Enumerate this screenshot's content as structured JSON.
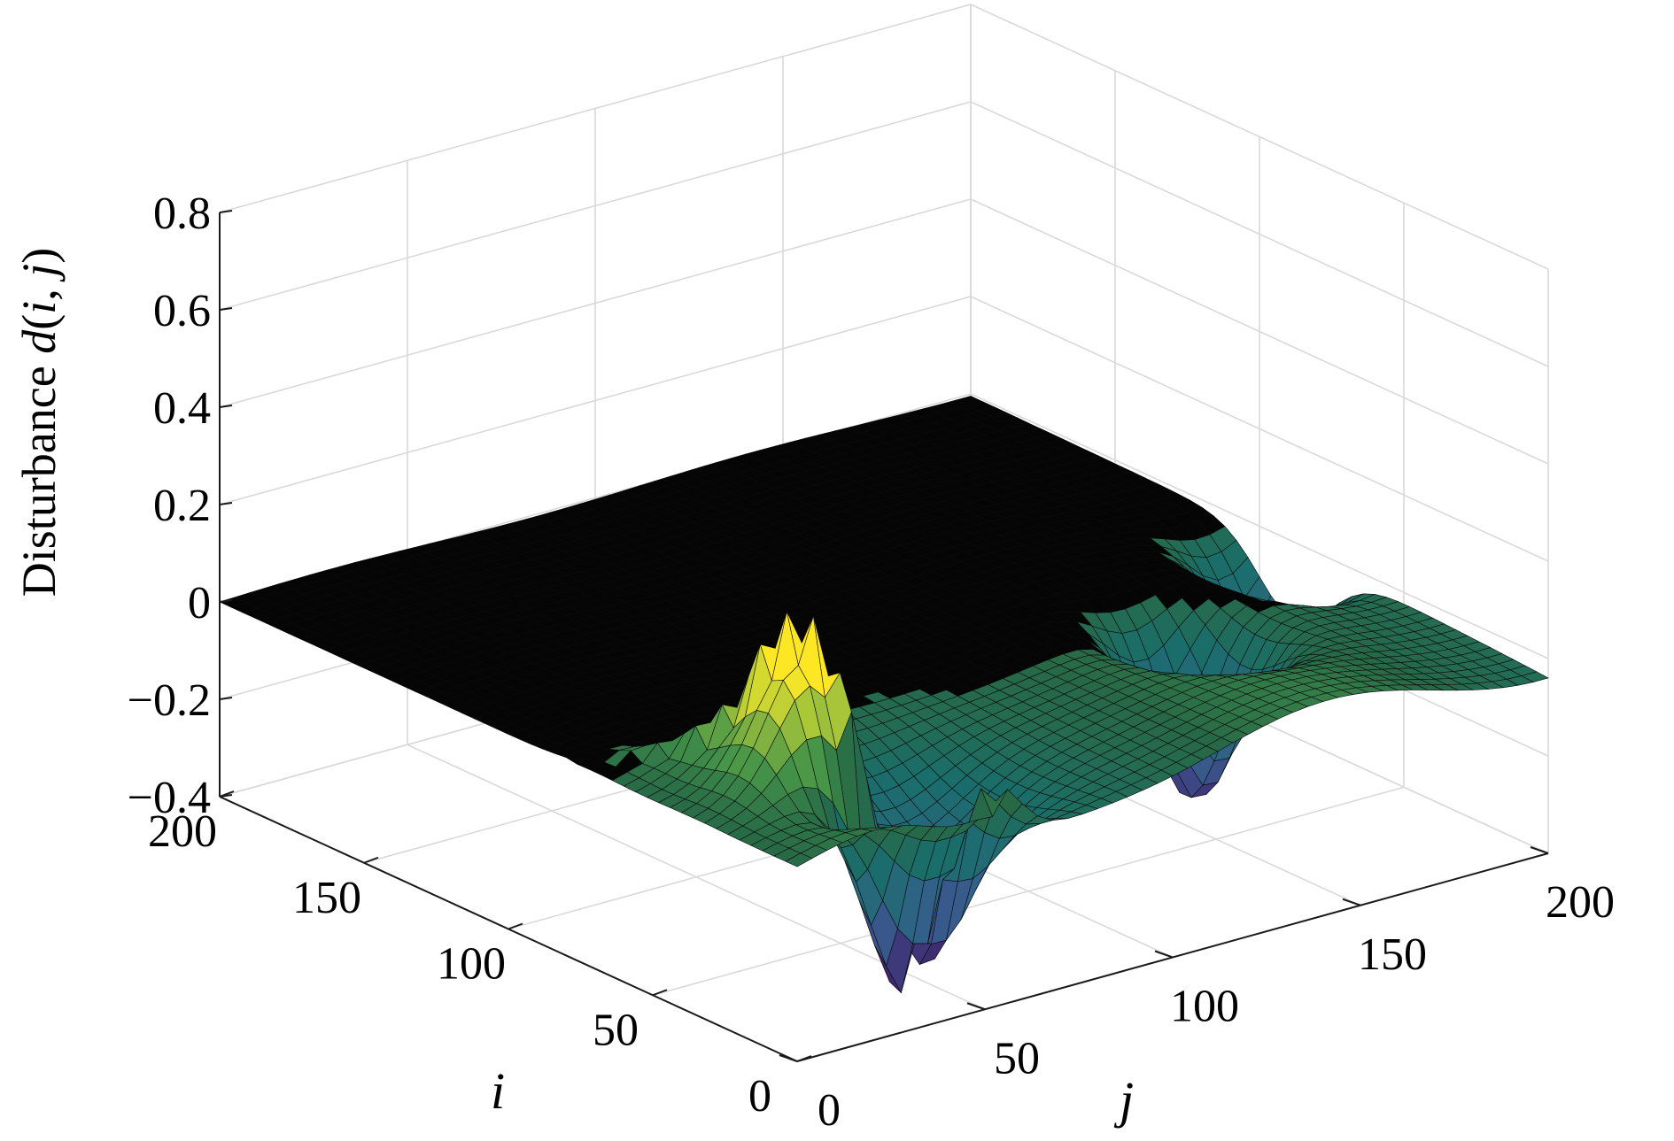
{
  "chart_data": {
    "type": "surface",
    "zlabel": "Disturbance d(i, j)",
    "xlabel": "j",
    "ylabel": "i",
    "xlim": [
      0,
      200
    ],
    "ylim": [
      0,
      200
    ],
    "zlim": [
      -0.4,
      0.8
    ],
    "x_ticks": [
      "0",
      "50",
      "100",
      "150",
      "200"
    ],
    "y_ticks": [
      "0",
      "50",
      "100",
      "150",
      "200"
    ],
    "z_ticks": [
      "−0.4",
      "−0.2",
      "0",
      "0.2",
      "0.4",
      "0.6",
      "0.8"
    ],
    "grid": true,
    "colormap": "viridis",
    "features": [
      {
        "i": 35,
        "j": 30,
        "d": 0.2,
        "kind": "peak"
      },
      {
        "i": 20,
        "j": 40,
        "d": -0.4,
        "kind": "trough"
      },
      {
        "i": 60,
        "j": 150,
        "d": -0.35,
        "kind": "trough"
      },
      {
        "i": 90,
        "j": 195,
        "d": -0.25,
        "kind": "trough"
      }
    ]
  },
  "labels": {
    "zlabel_prefix": "Disturbance ",
    "zlabel_d": "d",
    "zlabel_open": "(",
    "zlabel_i": "i",
    "zlabel_comma": ", ",
    "zlabel_j": "j",
    "zlabel_close": ")",
    "xlabel": "j",
    "ylabel": "i"
  },
  "colors": {
    "background": "#ffffff",
    "grid": "#d9d9d9",
    "axis": "#1a1a1a",
    "surface_low": "#440154",
    "surface_mid": "#21908d",
    "surface_high": "#fde725",
    "mesh": "#0a0a0a"
  }
}
